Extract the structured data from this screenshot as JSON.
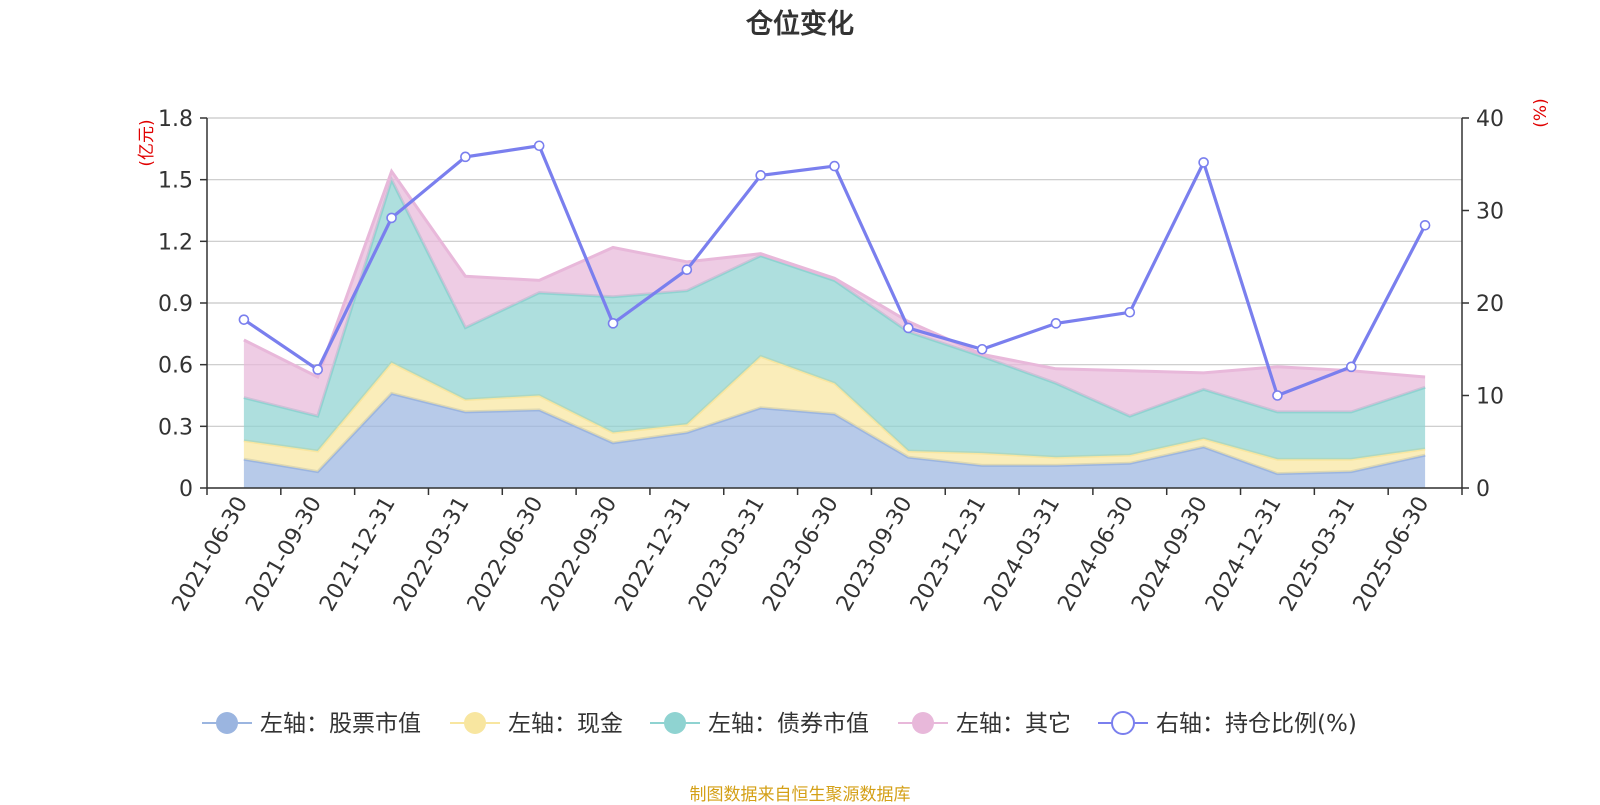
{
  "chart_data": {
    "type": "area",
    "title": "仓位变化",
    "y_left_unit": "(亿元)",
    "y_right_unit": "(%)",
    "categories": [
      "2021-06-30",
      "2021-09-30",
      "2021-12-31",
      "2022-03-31",
      "2022-06-30",
      "2022-09-30",
      "2022-12-31",
      "2023-03-31",
      "2023-06-30",
      "2023-09-30",
      "2023-12-31",
      "2024-03-31",
      "2024-06-30",
      "2024-09-30",
      "2024-12-31",
      "2025-03-31",
      "2025-06-30"
    ],
    "y_left_ticks": [
      "0",
      "0.3",
      "0.6",
      "0.9",
      "1.2",
      "1.5",
      "1.8"
    ],
    "y_right_ticks": [
      "0",
      "10",
      "20",
      "30",
      "40"
    ],
    "ylim_left": [
      0,
      1.8
    ],
    "ylim_right": [
      0,
      40
    ],
    "series": [
      {
        "name": "左轴：股票市值",
        "axis": "left",
        "stacked": true,
        "color": "#9bb5e0",
        "values": [
          0.14,
          0.08,
          0.46,
          0.37,
          0.38,
          0.22,
          0.27,
          0.39,
          0.36,
          0.15,
          0.11,
          0.11,
          0.12,
          0.2,
          0.07,
          0.08,
          0.16
        ]
      },
      {
        "name": "左轴：现金",
        "axis": "left",
        "stacked": true,
        "color": "#f8e6a0",
        "values": [
          0.09,
          0.1,
          0.15,
          0.06,
          0.07,
          0.05,
          0.04,
          0.25,
          0.15,
          0.03,
          0.06,
          0.04,
          0.04,
          0.04,
          0.07,
          0.06,
          0.03
        ]
      },
      {
        "name": "左轴：债券市值",
        "axis": "left",
        "stacked": true,
        "color": "#8fd3d1",
        "values": [
          0.21,
          0.17,
          0.89,
          0.35,
          0.5,
          0.66,
          0.65,
          0.49,
          0.5,
          0.58,
          0.47,
          0.36,
          0.19,
          0.24,
          0.23,
          0.23,
          0.3
        ]
      },
      {
        "name": "左轴：其它",
        "axis": "left",
        "stacked": true,
        "color": "#e8b8da",
        "values": [
          0.28,
          0.19,
          0.04,
          0.25,
          0.06,
          0.24,
          0.14,
          0.01,
          0.01,
          0.05,
          0.01,
          0.07,
          0.22,
          0.08,
          0.22,
          0.2,
          0.05
        ]
      },
      {
        "name": "右轴：持仓比例(%)",
        "axis": "right",
        "stacked": false,
        "color": "#7a7fee",
        "values": [
          18.2,
          12.8,
          29.2,
          35.8,
          37.0,
          17.8,
          23.6,
          33.8,
          34.8,
          17.3,
          15.0,
          17.8,
          19.0,
          35.2,
          10.0,
          13.1,
          28.4
        ]
      }
    ],
    "legend_position": "bottom",
    "grid": true
  },
  "footer": "制图数据来自恒生聚源数据库"
}
